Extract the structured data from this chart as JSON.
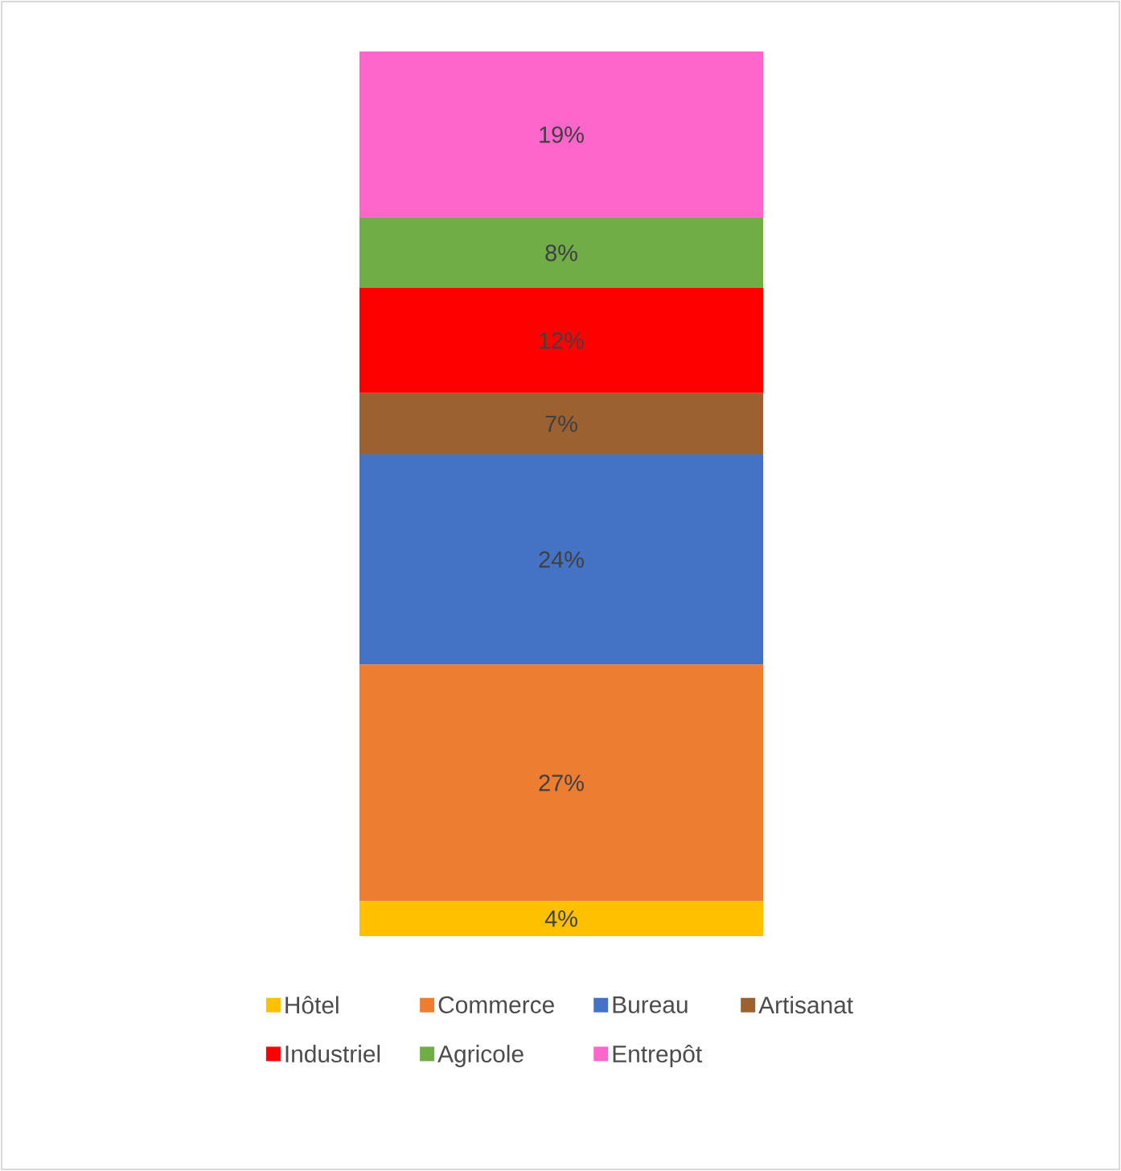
{
  "chart_data": {
    "type": "bar",
    "stacked": true,
    "categories": [
      null
    ],
    "legend": "bottom",
    "series": [
      {
        "name": "Hôtel",
        "color": "#ffc000",
        "values": [
          4
        ],
        "value_labels": [
          "4%"
        ]
      },
      {
        "name": "Commerce",
        "color": "#ed7d31",
        "values": [
          27
        ],
        "value_labels": [
          "27%"
        ]
      },
      {
        "name": "Bureau",
        "color": "#4472c4",
        "values": [
          24
        ],
        "value_labels": [
          "24%"
        ]
      },
      {
        "name": "Artisanat",
        "color": "#9c6130",
        "values": [
          7
        ],
        "value_labels": [
          "7%"
        ]
      },
      {
        "name": "Industriel",
        "color": "#ff0000",
        "values": [
          12
        ],
        "value_labels": [
          "12%"
        ]
      },
      {
        "name": "Agricole",
        "color": "#70ad47",
        "values": [
          8
        ],
        "value_labels": [
          "8%"
        ]
      },
      {
        "name": "Entrepôt",
        "color": "#ff66cc",
        "values": [
          19
        ],
        "value_labels": [
          "19%"
        ]
      }
    ]
  }
}
